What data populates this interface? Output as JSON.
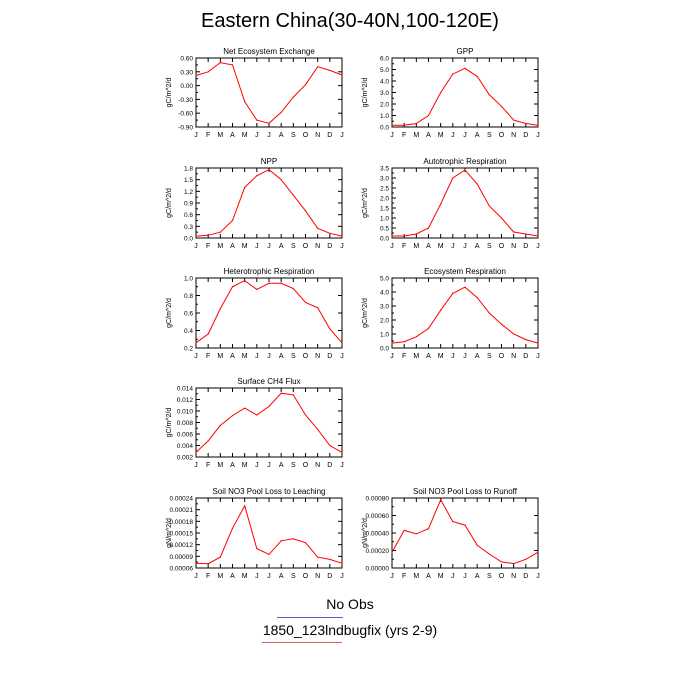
{
  "title": "Eastern China(30-40N,100-120E)",
  "legend": {
    "obs_label": "No Obs",
    "obs_color": "#5a5ad0",
    "model_label": "1850_123lndbugfix (yrs 2-9)",
    "model_color": "#e05a5a"
  },
  "line_color": "#ff0000",
  "chart_data": [
    {
      "type": "line",
      "title": "Net Ecosystem Exchange",
      "ylabel": "gC/m^2/d",
      "categories": [
        "J",
        "F",
        "M",
        "A",
        "M",
        "J",
        "J",
        "A",
        "S",
        "O",
        "N",
        "D",
        "J"
      ],
      "yticks": [
        "0.60",
        "0.30",
        "0.00",
        "-0.30",
        "-0.60",
        "-0.90"
      ],
      "ylim": [
        -0.9,
        0.6
      ],
      "values": [
        0.22,
        0.3,
        0.5,
        0.45,
        -0.35,
        -0.75,
        -0.82,
        -0.58,
        -0.25,
        0.02,
        0.41,
        0.33,
        0.23
      ]
    },
    {
      "type": "line",
      "title": "GPP",
      "ylabel": "gC/m^2/d",
      "categories": [
        "J",
        "F",
        "M",
        "A",
        "M",
        "J",
        "J",
        "A",
        "S",
        "O",
        "N",
        "D",
        "J"
      ],
      "yticks": [
        "6.0",
        "5.0",
        "4.0",
        "3.0",
        "2.0",
        "1.0",
        "0.0"
      ],
      "ylim": [
        0,
        6
      ],
      "values": [
        0.15,
        0.15,
        0.3,
        1.0,
        3.0,
        4.6,
        5.1,
        4.4,
        2.8,
        1.8,
        0.6,
        0.3,
        0.15
      ]
    },
    {
      "type": "line",
      "title": "NPP",
      "ylabel": "gC/m^2/d",
      "categories": [
        "J",
        "F",
        "M",
        "A",
        "M",
        "J",
        "J",
        "A",
        "S",
        "O",
        "N",
        "D",
        "J"
      ],
      "yticks": [
        "1.8",
        "1.5",
        "1.2",
        "0.9",
        "0.6",
        "0.3",
        "0.0"
      ],
      "ylim": [
        0,
        1.8
      ],
      "values": [
        0.05,
        0.07,
        0.15,
        0.45,
        1.3,
        1.6,
        1.76,
        1.5,
        1.1,
        0.7,
        0.25,
        0.12,
        0.05
      ]
    },
    {
      "type": "line",
      "title": "Autotrophic Respiration",
      "ylabel": "gC/m^2/d",
      "categories": [
        "J",
        "F",
        "M",
        "A",
        "M",
        "J",
        "J",
        "A",
        "S",
        "O",
        "N",
        "D",
        "J"
      ],
      "yticks": [
        "3.5",
        "3.0",
        "2.5",
        "2.0",
        "1.5",
        "1.0",
        "0.5",
        "0.0"
      ],
      "ylim": [
        0,
        3.5
      ],
      "values": [
        0.1,
        0.1,
        0.2,
        0.5,
        1.7,
        3.0,
        3.4,
        2.7,
        1.6,
        1.0,
        0.3,
        0.2,
        0.1
      ]
    },
    {
      "type": "line",
      "title": "Heterotrophic Respiration",
      "ylabel": "gC/m^2/d",
      "categories": [
        "J",
        "F",
        "M",
        "A",
        "M",
        "J",
        "J",
        "A",
        "S",
        "O",
        "N",
        "D",
        "J"
      ],
      "yticks": [
        "1.0",
        "0.8",
        "0.6",
        "0.4",
        "0.2"
      ],
      "ylim": [
        0.2,
        1.0
      ],
      "values": [
        0.26,
        0.36,
        0.65,
        0.9,
        0.97,
        0.87,
        0.94,
        0.94,
        0.88,
        0.72,
        0.66,
        0.42,
        0.26
      ]
    },
    {
      "type": "line",
      "title": "Ecosystem Respiration",
      "ylabel": "gC/m^2/d",
      "categories": [
        "J",
        "F",
        "M",
        "A",
        "M",
        "J",
        "J",
        "A",
        "S",
        "O",
        "N",
        "D",
        "J"
      ],
      "yticks": [
        "5.0",
        "4.0",
        "3.0",
        "2.0",
        "1.0",
        "0.0"
      ],
      "ylim": [
        0,
        5
      ],
      "values": [
        0.35,
        0.45,
        0.8,
        1.4,
        2.7,
        3.9,
        4.35,
        3.6,
        2.5,
        1.7,
        1.0,
        0.6,
        0.35
      ]
    },
    {
      "type": "line",
      "title": "Surface CH4 Flux",
      "ylabel": "gC/m^2/d",
      "categories": [
        "J",
        "F",
        "M",
        "A",
        "M",
        "J",
        "J",
        "A",
        "S",
        "O",
        "N",
        "D",
        "J"
      ],
      "yticks": [
        "0.014",
        "0.012",
        "0.010",
        "0.008",
        "0.006",
        "0.004",
        "0.002"
      ],
      "ylim": [
        0.002,
        0.014
      ],
      "values": [
        0.0028,
        0.0048,
        0.0075,
        0.0092,
        0.0105,
        0.0093,
        0.0108,
        0.0131,
        0.0128,
        0.0093,
        0.0068,
        0.004,
        0.0028
      ]
    },
    {
      "type": "line",
      "title": "Soil NO3 Pool Loss to Leaching",
      "ylabel": "gN/m^2/d",
      "categories": [
        "J",
        "F",
        "M",
        "A",
        "M",
        "J",
        "J",
        "A",
        "S",
        "O",
        "N",
        "D",
        "J"
      ],
      "yticks": [
        "0.00024",
        "0.00021",
        "0.00018",
        "0.00015",
        "0.00012",
        "0.00009",
        "0.00006"
      ],
      "ylim": [
        6e-05,
        0.00024
      ],
      "values": [
        7.2e-05,
        7.1e-05,
        8.8e-05,
        0.000162,
        0.00022,
        0.00011,
        9.5e-05,
        0.00013,
        0.000135,
        0.000125,
        8.8e-05,
        8.2e-05,
        7.2e-05
      ]
    },
    {
      "type": "line",
      "title": "Soil NO3 Pool Loss to Runoff",
      "ylabel": "gN/m^2/d",
      "categories": [
        "J",
        "F",
        "M",
        "A",
        "M",
        "J",
        "J",
        "A",
        "S",
        "O",
        "N",
        "D",
        "J"
      ],
      "yticks": [
        "0.00080",
        "0.00060",
        "0.00040",
        "0.00020",
        "0.00000"
      ],
      "ylim": [
        0,
        0.0008
      ],
      "values": [
        0.00018,
        0.00043,
        0.00039,
        0.00045,
        0.00078,
        0.00053,
        0.00049,
        0.00026,
        0.00016,
        7e-05,
        5e-05,
        0.0001,
        0.00018
      ]
    }
  ]
}
